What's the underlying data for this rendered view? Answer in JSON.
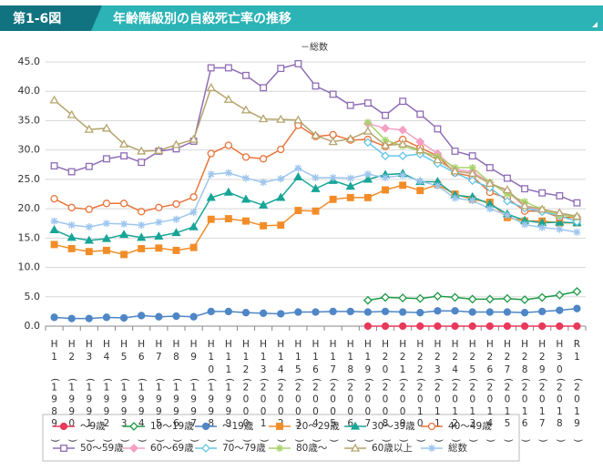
{
  "chart_data": {
    "type": "line",
    "figure_label": "第1-6図",
    "title": "年齢階級別の自殺死亡率の推移",
    "subtitle": "－総数",
    "categories": [
      "H1(1989)",
      "H2(1990)",
      "H3(1991)",
      "H4(1992)",
      "H5(1993)",
      "H6(1994)",
      "H7(1995)",
      "H8(1996)",
      "H9(1997)",
      "H10(1998)",
      "H11(1999)",
      "H12(2000)",
      "H13(2001)",
      "H14(2002)",
      "H15(2003)",
      "H16(2004)",
      "H17(2005)",
      "H18(2006)",
      "H19(2007)",
      "H20(2008)",
      "H21(2009)",
      "H22(2010)",
      "H23(2011)",
      "H24(2012)",
      "H25(2013)",
      "H26(2014)",
      "H27(2015)",
      "H28(2016)",
      "H29(2017)",
      "H30(2018)",
      "R1(2019)"
    ],
    "ylim": [
      0,
      45
    ],
    "yticks": [
      {
        "value": 0,
        "label": "0.0"
      },
      {
        "value": 5,
        "label": "5.0"
      },
      {
        "value": 10,
        "label": "10.0"
      },
      {
        "value": 15,
        "label": "15.0"
      },
      {
        "value": 20,
        "label": "20.0"
      },
      {
        "value": 25,
        "label": "25.0"
      },
      {
        "value": 30,
        "label": "30.0"
      },
      {
        "value": 35,
        "label": "35.0"
      },
      {
        "value": 40,
        "label": "40.0"
      },
      {
        "value": 45,
        "label": "45.0"
      }
    ],
    "grid": true,
    "series": [
      {
        "name": "～9歳",
        "color": "#e8395a",
        "marker": "circle-filled",
        "values": [
          null,
          null,
          null,
          null,
          null,
          null,
          null,
          null,
          null,
          null,
          null,
          null,
          null,
          null,
          null,
          null,
          null,
          null,
          0,
          0,
          0,
          0,
          0,
          0,
          0,
          0,
          0,
          0,
          0,
          0,
          0
        ]
      },
      {
        "name": "10～19歳",
        "color": "#1e9a46",
        "marker": "diamond-hollow",
        "values": [
          null,
          null,
          null,
          null,
          null,
          null,
          null,
          null,
          null,
          null,
          null,
          null,
          null,
          null,
          null,
          null,
          null,
          null,
          4.4,
          4.9,
          4.8,
          4.7,
          5.1,
          4.9,
          4.6,
          4.6,
          4.7,
          4.5,
          4.9,
          5.3,
          5.9
        ]
      },
      {
        "name": "～19歳",
        "color": "#4f86c6",
        "marker": "circle-filled",
        "values": [
          1.5,
          1.3,
          1.3,
          1.5,
          1.4,
          1.8,
          1.6,
          1.7,
          1.6,
          2.5,
          2.5,
          2.3,
          2.2,
          2.1,
          2.4,
          2.4,
          2.5,
          2.5,
          2.4,
          2.5,
          2.4,
          2.3,
          2.6,
          2.6,
          2.4,
          2.4,
          2.4,
          2.3,
          2.5,
          2.7,
          3.0
        ]
      },
      {
        "name": "20～29歳",
        "color": "#f28c28",
        "marker": "square-filled",
        "values": [
          13.9,
          13.2,
          12.7,
          12.9,
          12.2,
          13.2,
          13.3,
          12.9,
          13.4,
          18.2,
          18.3,
          17.9,
          17.1,
          17.2,
          19.7,
          19.6,
          21.6,
          21.9,
          21.9,
          23.2,
          24.0,
          23.1,
          24.1,
          22.5,
          21.6,
          21.1,
          18.5,
          17.9,
          17.9,
          17.6,
          17.6
        ]
      },
      {
        "name": "30～39歳",
        "color": "#17a596",
        "marker": "triangle-filled",
        "values": [
          16.4,
          15.1,
          14.6,
          14.9,
          15.6,
          15.1,
          15.3,
          15.9,
          16.9,
          21.9,
          22.8,
          21.6,
          20.6,
          21.9,
          25.4,
          23.4,
          24.8,
          23.8,
          25.0,
          25.8,
          26.0,
          24.6,
          24.6,
          22.3,
          22.0,
          20.8,
          19.1,
          18.0,
          17.6,
          17.7,
          17.6
        ]
      },
      {
        "name": "40～49歳",
        "color": "#e8743b",
        "marker": "circle-hollow",
        "values": [
          21.7,
          20.2,
          19.9,
          20.9,
          20.9,
          19.5,
          20.2,
          20.8,
          22.0,
          29.4,
          30.8,
          28.8,
          28.5,
          30.1,
          34.2,
          32.3,
          32.6,
          31.7,
          31.8,
          30.6,
          31.8,
          30.4,
          29.0,
          26.1,
          25.5,
          22.8,
          21.8,
          19.6,
          19.6,
          18.5,
          18.5
        ]
      },
      {
        "name": "50～59歳",
        "color": "#8f6cb5",
        "marker": "square-hollow",
        "values": [
          27.3,
          26.3,
          27.2,
          28.5,
          29.0,
          27.9,
          29.8,
          30.2,
          31.5,
          44.0,
          44.0,
          42.7,
          40.6,
          43.9,
          44.7,
          40.9,
          39.5,
          37.6,
          38.0,
          35.9,
          38.3,
          36.1,
          33.6,
          29.8,
          29.0,
          27.0,
          25.2,
          23.4,
          22.7,
          22.2,
          21.0
        ]
      },
      {
        "name": "60～69歳",
        "color": "#f4a0c4",
        "marker": "diamond-filled",
        "values": [
          null,
          null,
          null,
          null,
          null,
          null,
          null,
          null,
          null,
          null,
          null,
          null,
          null,
          null,
          null,
          null,
          null,
          null,
          34.5,
          33.7,
          33.4,
          31.4,
          29.4,
          26.7,
          26.3,
          24.4,
          23.0,
          20.3,
          19.6,
          19.1,
          18.6
        ]
      },
      {
        "name": "70～79歳",
        "color": "#67c6ea",
        "marker": "diamond-hollow",
        "values": [
          null,
          null,
          null,
          null,
          null,
          null,
          null,
          null,
          null,
          null,
          null,
          null,
          null,
          null,
          null,
          null,
          null,
          null,
          31.3,
          29.0,
          29.0,
          29.3,
          27.7,
          26.1,
          24.8,
          23.6,
          21.3,
          20.1,
          19.5,
          18.8,
          17.8
        ]
      },
      {
        "name": "80歳～",
        "color": "#a8d36b",
        "marker": "star",
        "values": [
          null,
          null,
          null,
          null,
          null,
          null,
          null,
          null,
          null,
          null,
          null,
          null,
          null,
          null,
          null,
          null,
          null,
          null,
          34.7,
          31.7,
          30.7,
          29.8,
          28.9,
          27.0,
          27.0,
          24.5,
          22.5,
          21.2,
          19.9,
          18.9,
          18.6
        ]
      },
      {
        "name": "60歳以上",
        "color": "#b6a46c",
        "marker": "triangle-hollow",
        "values": [
          38.5,
          36.0,
          33.5,
          33.7,
          31.0,
          29.8,
          29.9,
          30.9,
          31.8,
          40.6,
          38.6,
          36.8,
          35.3,
          35.2,
          35.1,
          32.5,
          31.4,
          31.9,
          33.2,
          30.8,
          31.0,
          30.0,
          28.3,
          26.4,
          26.0,
          24.3,
          23.2,
          20.5,
          19.9,
          19.3,
          18.7
        ]
      },
      {
        "name": "総数",
        "color": "#9ec6ee",
        "marker": "star",
        "values": [
          17.9,
          17.2,
          16.9,
          17.5,
          17.4,
          17.2,
          17.7,
          18.2,
          19.4,
          25.9,
          26.1,
          25.2,
          24.5,
          25.1,
          26.9,
          25.3,
          25.3,
          25.2,
          25.9,
          25.3,
          25.7,
          24.7,
          23.9,
          21.8,
          21.4,
          20.0,
          18.9,
          17.3,
          16.8,
          16.5,
          16.0
        ]
      }
    ]
  }
}
